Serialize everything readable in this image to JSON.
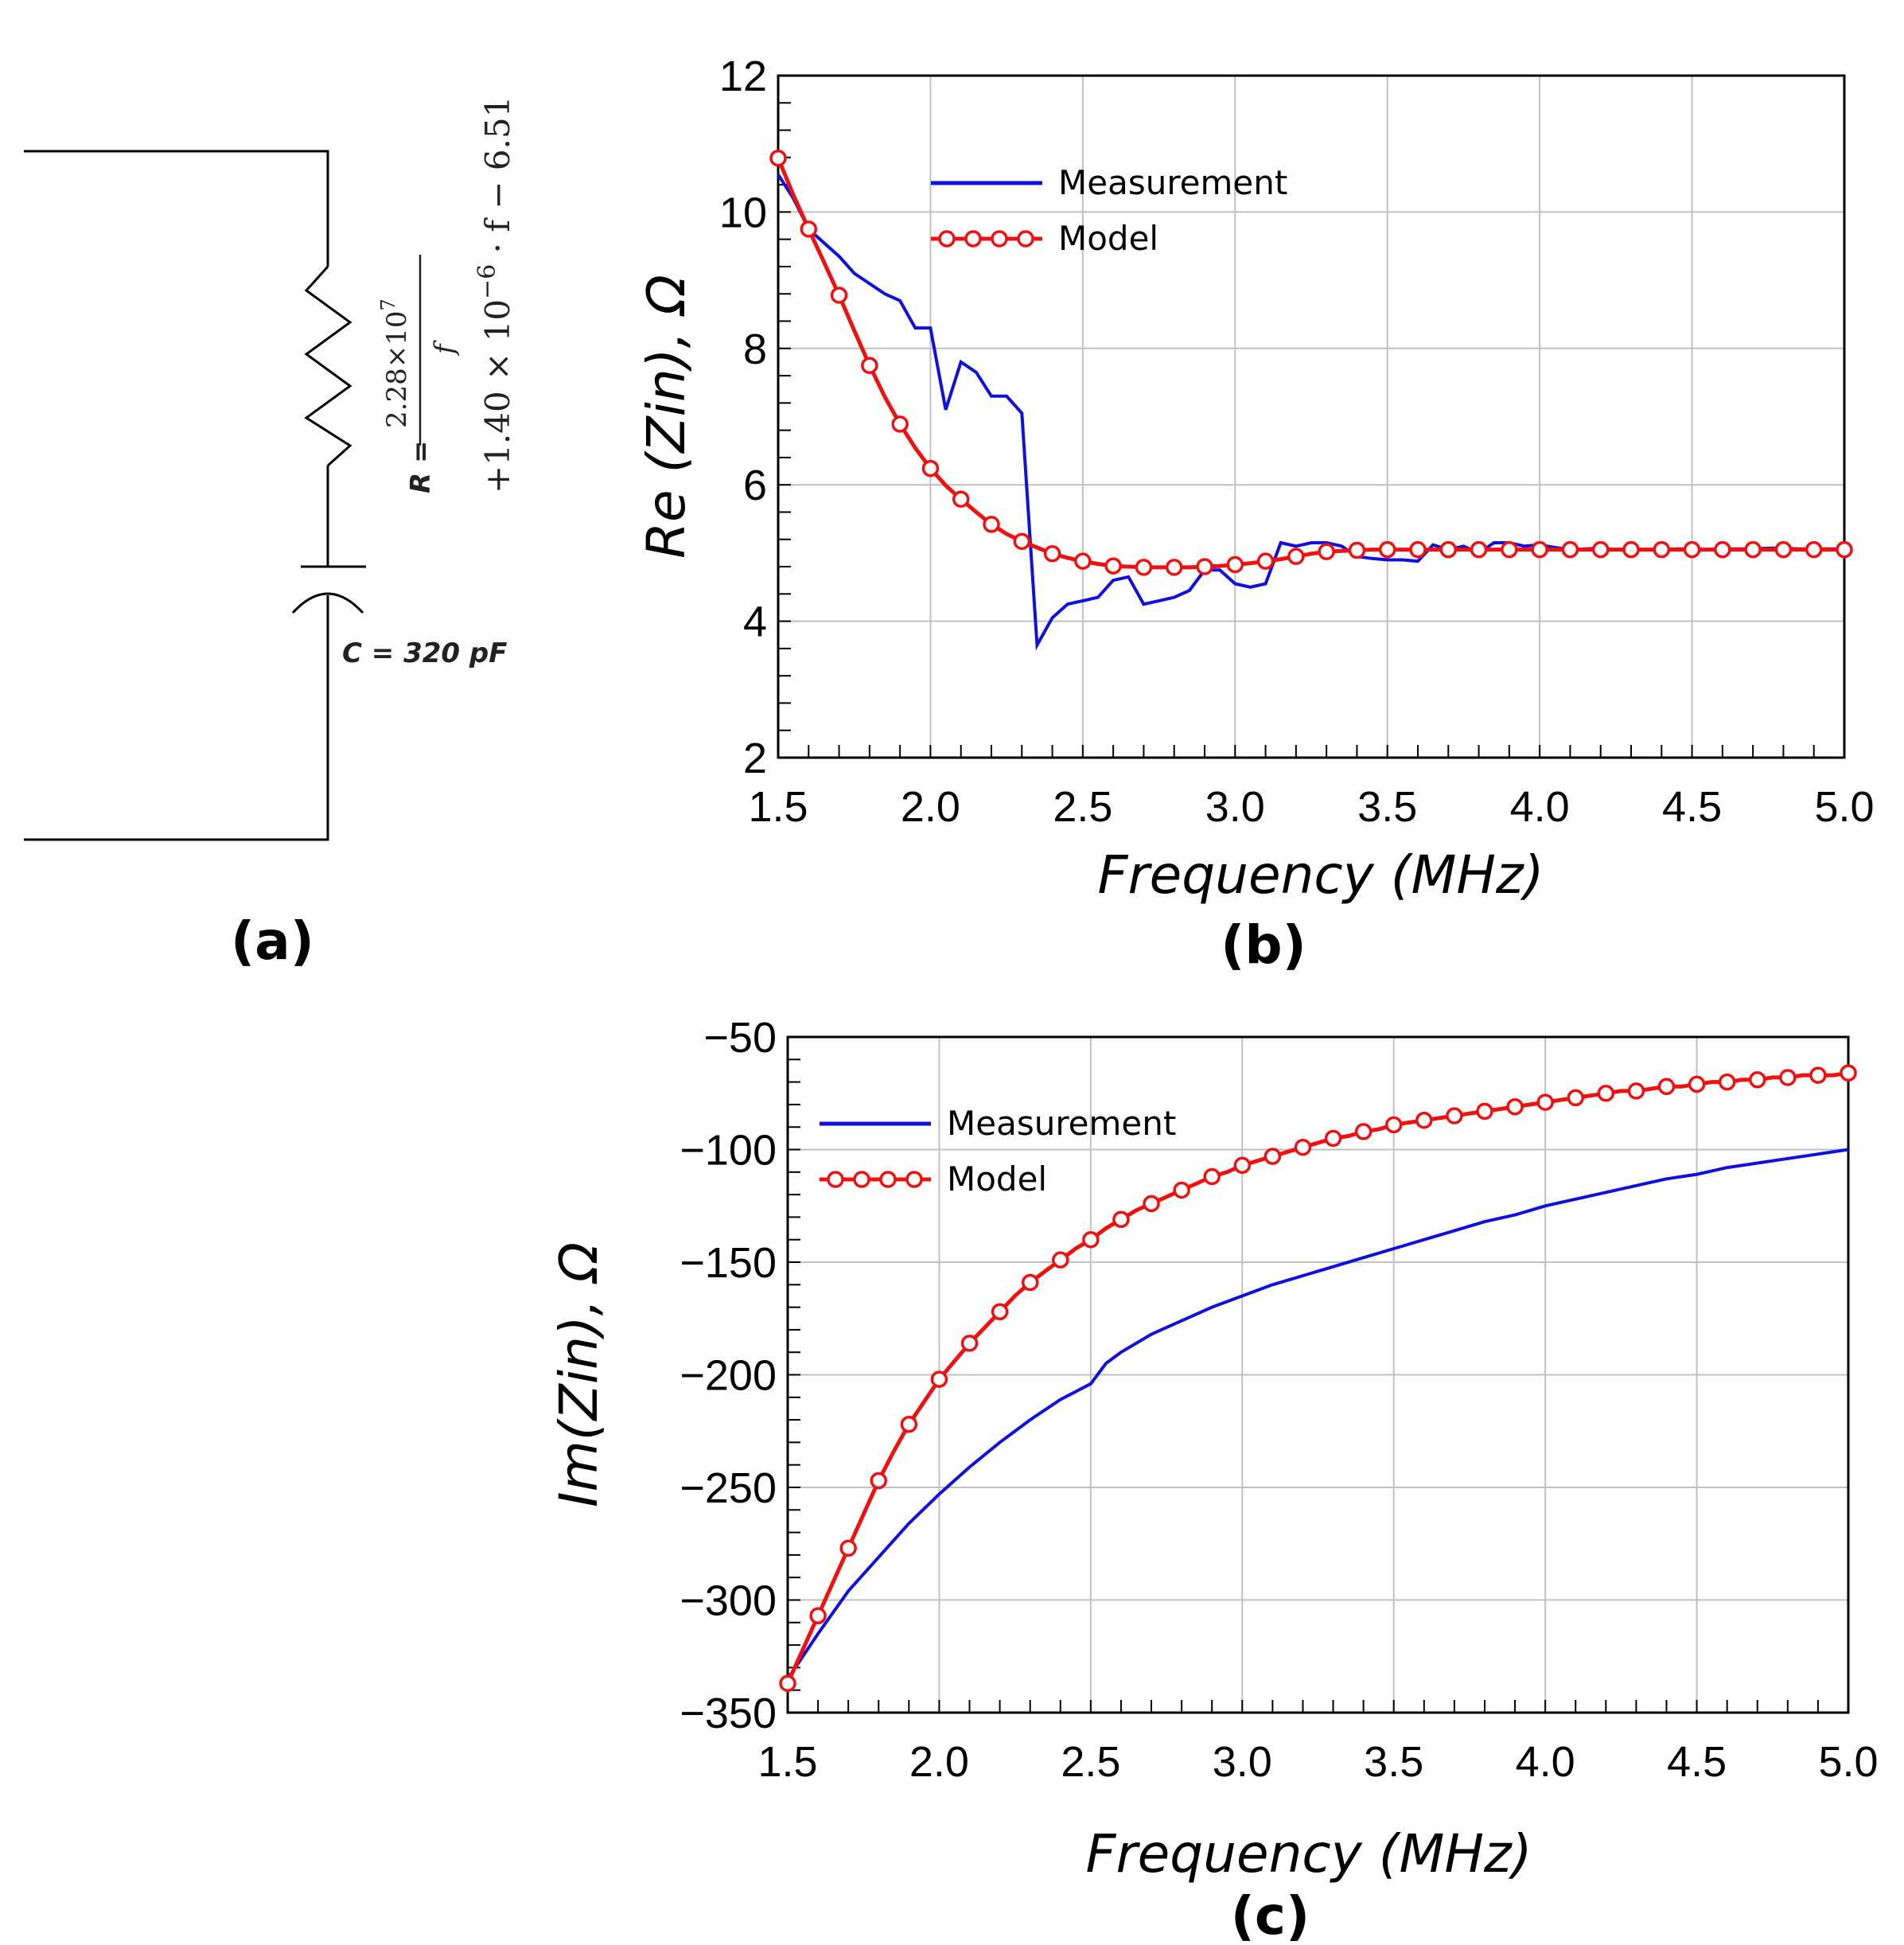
{
  "circuit": {
    "panel_label": "(a)",
    "resistor_label": "R =",
    "numerator": "2.28×10",
    "numerator_exp": "7",
    "denominator": "f",
    "formula_tail": "+1.40 × 10",
    "formula_tail_exp": "−6",
    "formula_end": " · f − 6.51",
    "capacitor_label": "C = 320 pF"
  },
  "colors": {
    "measurement": "#1010dd",
    "model": "#ee1111",
    "grid": "#c0c0c0"
  },
  "chart_data": [
    {
      "id": "b",
      "type": "line",
      "panel_label": "(b)",
      "xlabel": "Frequency (MHz)",
      "ylabel": "Re (Zin), Ω",
      "xlim": [
        1.5,
        5.0
      ],
      "ylim": [
        2,
        12
      ],
      "xticks": [
        "1.5",
        "2.0",
        "2.5",
        "3.0",
        "3.5",
        "4.0",
        "4.5",
        "5.0"
      ],
      "yticks": [
        "2",
        "4",
        "6",
        "8",
        "10",
        "12"
      ],
      "legend": [
        "Measurement",
        "Model"
      ],
      "series": [
        {
          "name": "Measurement",
          "x": [
            1.5,
            1.55,
            1.6,
            1.65,
            1.7,
            1.75,
            1.8,
            1.85,
            1.9,
            1.95,
            2.0,
            2.05,
            2.1,
            2.15,
            2.2,
            2.25,
            2.3,
            2.35,
            2.4,
            2.45,
            2.5,
            2.55,
            2.6,
            2.65,
            2.7,
            2.75,
            2.8,
            2.85,
            2.9,
            2.95,
            3.0,
            3.05,
            3.1,
            3.15,
            3.2,
            3.25,
            3.3,
            3.35,
            3.4,
            3.45,
            3.5,
            3.55,
            3.6,
            3.65,
            3.7,
            3.75,
            3.8,
            3.85,
            3.9,
            3.95,
            4.0,
            4.05,
            4.1,
            4.15,
            4.2,
            4.25,
            4.3,
            4.35,
            4.4,
            4.45,
            4.5,
            4.55,
            4.6,
            4.65,
            4.7,
            4.75,
            4.8,
            4.85,
            4.9,
            4.95,
            5.0
          ],
          "values": [
            10.55,
            10.2,
            9.75,
            9.55,
            9.35,
            9.1,
            8.95,
            8.8,
            8.7,
            8.3,
            8.3,
            7.1,
            7.8,
            7.65,
            7.3,
            7.3,
            7.05,
            3.65,
            4.05,
            4.25,
            4.3,
            4.35,
            4.6,
            4.65,
            4.25,
            4.3,
            4.35,
            4.45,
            4.75,
            4.75,
            4.55,
            4.5,
            4.55,
            5.15,
            5.1,
            5.15,
            5.15,
            5.1,
            4.95,
            4.92,
            4.9,
            4.9,
            4.88,
            5.12,
            5.05,
            5.1,
            5.0,
            5.15,
            5.15,
            5.1,
            5.12,
            5.08,
            5.05,
            5.06,
            5.07,
            5.05,
            5.06,
            5.05,
            5.05,
            5.06,
            5.06,
            5.05,
            5.06,
            5.06,
            5.06,
            5.07,
            5.07,
            5.06,
            5.06,
            5.06,
            5.06
          ]
        },
        {
          "name": "Model",
          "x": [
            1.5,
            1.55,
            1.6,
            1.65,
            1.7,
            1.75,
            1.8,
            1.85,
            1.9,
            1.95,
            2.0,
            2.05,
            2.1,
            2.15,
            2.2,
            2.25,
            2.3,
            2.35,
            2.4,
            2.45,
            2.5,
            2.55,
            2.6,
            2.65,
            2.7,
            2.75,
            2.8,
            2.85,
            2.9,
            2.95,
            3.0,
            3.05,
            3.1,
            3.15,
            3.2,
            3.25,
            3.3,
            3.35,
            3.4,
            3.45,
            3.5,
            3.55,
            3.6,
            3.65,
            3.7,
            3.75,
            3.8,
            3.85,
            3.9,
            3.95,
            4.0,
            4.05,
            4.1,
            4.15,
            4.2,
            4.25,
            4.3,
            4.35,
            4.4,
            4.45,
            4.5,
            4.55,
            4.6,
            4.65,
            4.7,
            4.75,
            4.8,
            4.85,
            4.9,
            4.95,
            5.0
          ],
          "values": [
            10.79,
            10.25,
            9.75,
            9.27,
            8.78,
            8.26,
            7.75,
            7.29,
            6.89,
            6.54,
            6.24,
            5.99,
            5.79,
            5.6,
            5.42,
            5.28,
            5.17,
            5.08,
            4.99,
            4.93,
            4.88,
            4.84,
            4.81,
            4.8,
            4.79,
            4.79,
            4.79,
            4.79,
            4.8,
            4.81,
            4.83,
            4.85,
            4.88,
            4.91,
            4.95,
            4.99,
            5.02,
            5.03,
            5.04,
            5.05,
            5.05,
            5.05,
            5.05,
            5.05,
            5.05,
            5.05,
            5.05,
            5.05,
            5.05,
            5.05,
            5.05,
            5.05,
            5.05,
            5.05,
            5.05,
            5.05,
            5.05,
            5.05,
            5.05,
            5.05,
            5.05,
            5.05,
            5.05,
            5.05,
            5.05,
            5.05,
            5.05,
            5.05,
            5.05,
            5.05,
            5.05
          ]
        }
      ]
    },
    {
      "id": "c",
      "type": "line",
      "panel_label": "(c)",
      "xlabel": "Frequency (MHz)",
      "ylabel": "Im(Zin), Ω",
      "xlim": [
        1.5,
        5.0
      ],
      "ylim": [
        -350,
        -50
      ],
      "xticks": [
        "1.5",
        "2.0",
        "2.5",
        "3.0",
        "3.5",
        "4.0",
        "4.5",
        "5.0"
      ],
      "yticks": [
        "−50",
        "−100",
        "−150",
        "−200",
        "−250",
        "−300",
        "−350"
      ],
      "legend": [
        "Measurement",
        "Model"
      ],
      "series": [
        {
          "name": "Measurement",
          "x": [
            1.5,
            1.6,
            1.7,
            1.8,
            1.9,
            2.0,
            2.1,
            2.2,
            2.3,
            2.4,
            2.5,
            2.55,
            2.6,
            2.7,
            2.8,
            2.9,
            3.0,
            3.1,
            3.2,
            3.3,
            3.4,
            3.5,
            3.6,
            3.7,
            3.8,
            3.9,
            4.0,
            4.1,
            4.2,
            4.3,
            4.4,
            4.5,
            4.6,
            4.7,
            4.8,
            4.9,
            5.0
          ],
          "values": [
            -335,
            -315,
            -296,
            -281,
            -266,
            -253,
            -241,
            -230,
            -220,
            -211,
            -204,
            -195,
            -190,
            -182,
            -176,
            -170,
            -165,
            -160,
            -156,
            -152,
            -148,
            -144,
            -140,
            -136,
            -132,
            -129,
            -125,
            -122,
            -119,
            -116,
            -113,
            -111,
            -108,
            -106,
            -104,
            -102,
            -100
          ]
        },
        {
          "name": "Model",
          "x": [
            1.5,
            1.55,
            1.6,
            1.65,
            1.7,
            1.75,
            1.8,
            1.85,
            1.9,
            1.95,
            2.0,
            2.05,
            2.1,
            2.15,
            2.2,
            2.25,
            2.3,
            2.35,
            2.4,
            2.45,
            2.5,
            2.55,
            2.6,
            2.65,
            2.7,
            2.75,
            2.8,
            2.85,
            2.9,
            2.95,
            3.0,
            3.05,
            3.1,
            3.15,
            3.2,
            3.25,
            3.3,
            3.35,
            3.4,
            3.45,
            3.5,
            3.55,
            3.6,
            3.65,
            3.7,
            3.75,
            3.8,
            3.85,
            3.9,
            3.95,
            4.0,
            4.05,
            4.1,
            4.15,
            4.2,
            4.25,
            4.3,
            4.35,
            4.4,
            4.45,
            4.5,
            4.55,
            4.6,
            4.65,
            4.7,
            4.75,
            4.8,
            4.85,
            4.9,
            4.95,
            5.0
          ],
          "values": [
            -337,
            -322,
            -307,
            -292,
            -277,
            -262,
            -247,
            -234,
            -222,
            -212,
            -202,
            -194,
            -186,
            -179,
            -172,
            -165,
            -159,
            -154,
            -149,
            -144,
            -140,
            -135,
            -131,
            -127,
            -124,
            -121,
            -118,
            -115,
            -112,
            -110,
            -107,
            -105,
            -103,
            -101,
            -99,
            -97,
            -95,
            -94,
            -92,
            -91,
            -89,
            -88,
            -87,
            -86,
            -85,
            -84,
            -83,
            -82,
            -81,
            -80,
            -79,
            -78,
            -77,
            -76,
            -75,
            -74,
            -74,
            -73,
            -72,
            -72,
            -71,
            -70,
            -70,
            -69,
            -69,
            -68,
            -68,
            -67,
            -67,
            -67,
            -66
          ]
        }
      ]
    }
  ]
}
